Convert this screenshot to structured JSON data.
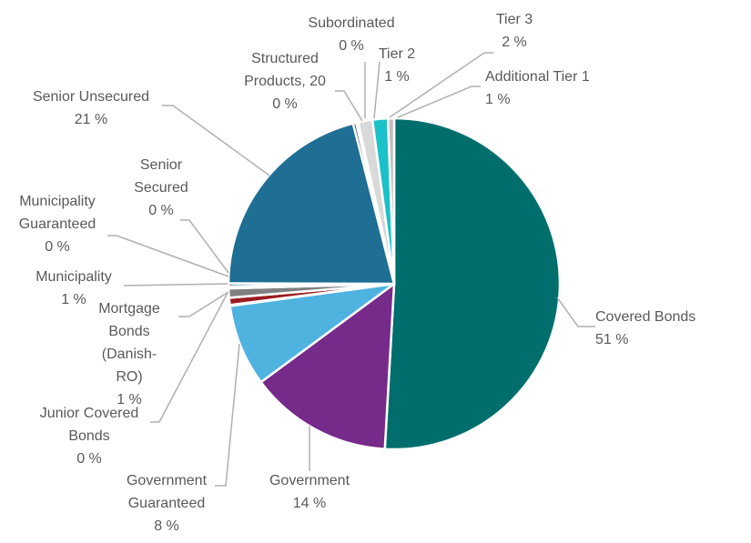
{
  "chart_data": {
    "type": "pie",
    "title": "",
    "start": "12 o'clock, clockwise",
    "slices": [
      {
        "name": "Covered Bonds",
        "value": 51,
        "label_lines": [
          "Covered Bonds",
          "51 %"
        ],
        "color": "#016E6E"
      },
      {
        "name": "Government",
        "value": 14,
        "label_lines": [
          "Government",
          "14 %"
        ],
        "color": "#762A89"
      },
      {
        "name": "Government Guaranteed",
        "value": 8,
        "label_lines": [
          "Government",
          "Guaranteed",
          "8 %"
        ],
        "color": "#4FB3E0"
      },
      {
        "name": "Junior Covered Bonds",
        "value": 0.1,
        "label_lines": [
          "Junior Covered",
          "Bonds",
          "0 %"
        ],
        "color": "#A6D6EE"
      },
      {
        "name": "Mortgage Bonds (Danish-RO)",
        "value": 0.7,
        "label_lines": [
          "Mortgage",
          "Bonds",
          "(Danish-",
          "RO)",
          "1 %"
        ],
        "color": "#9B1B1E"
      },
      {
        "name": "Municipality",
        "value": 0.9,
        "label_lines": [
          "Municipality",
          "1 %"
        ],
        "color": "#7F7F7F"
      },
      {
        "name": "Municipality Guaranteed",
        "value": 0.2,
        "label_lines": [
          "Municipality",
          "Guaranteed",
          "0 %"
        ],
        "color": "#C9A0DC"
      },
      {
        "name": "Senior Secured",
        "value": 0.3,
        "label_lines": [
          "Senior",
          "Secured",
          "0 %"
        ],
        "color": "#1A5F7A"
      },
      {
        "name": "Senior Unsecured",
        "value": 21,
        "label_lines": [
          "Senior Unsecured",
          "21 %"
        ],
        "color": "#1F6E94"
      },
      {
        "name": "Structured Products, 20",
        "value": 0.3,
        "label_lines": [
          "Structured",
          "Products, 20",
          "0 %"
        ],
        "color": "#1A3C5A"
      },
      {
        "name": "Subordinated",
        "value": 0.2,
        "label_lines": [
          "Subordinated",
          "0 %"
        ],
        "color": "#E8E8E8"
      },
      {
        "name": "Tier 2",
        "value": 1.4,
        "label_lines": [
          "Tier 2",
          "1 %"
        ],
        "color": "#D9D9D9"
      },
      {
        "name": "Tier 3",
        "value": 1.5,
        "label_lines": [
          "Tier 3",
          "2 %"
        ],
        "color": "#1BC1C8"
      },
      {
        "name": "Additional Tier 1",
        "value": 0.6,
        "label_lines": [
          "Additional Tier 1",
          "1 %"
        ],
        "color": "#BFBFBF"
      }
    ]
  }
}
